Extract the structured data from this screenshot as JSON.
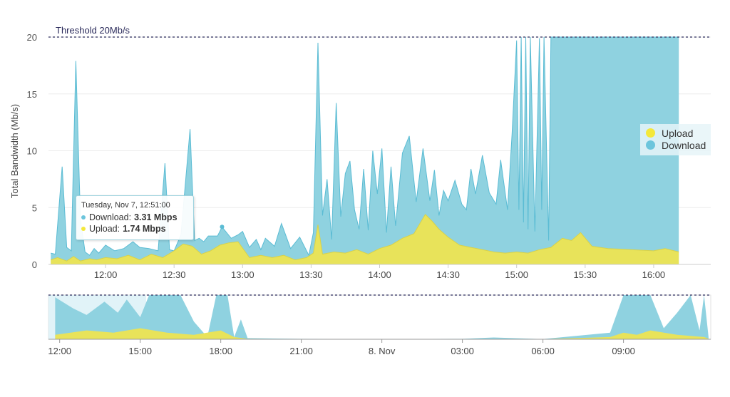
{
  "chart_data": [
    {
      "type": "area",
      "ylabel": "Total Bandwidth (Mb/s)",
      "ylim": [
        0,
        20
      ],
      "yticks": [
        "0",
        "5",
        "10",
        "15",
        "20"
      ],
      "xticks": [
        "12:00",
        "12:30",
        "13:00",
        "13:30",
        "14:00",
        "14:30",
        "15:00",
        "15:30",
        "16:00"
      ],
      "xrange_minutes": [
        695,
        985
      ],
      "threshold": {
        "label": "Threshold 20Mb/s",
        "value": 20
      },
      "legend": {
        "placement": "right",
        "entries": [
          "Upload",
          "Download"
        ]
      },
      "colors": {
        "upload": "#e8e35a",
        "download": "#8fd2e0",
        "download_stroke": "#5bbcd4",
        "threshold": "#2a2a5a"
      },
      "series": [
        {
          "name": "Download",
          "x": [
            "11:36",
            "11:38",
            "11:41",
            "11:43",
            "11:45",
            "11:47",
            "11:49",
            "11:51",
            "11:53",
            "11:55",
            "11:57",
            "12:00",
            "12:04",
            "12:08",
            "12:12",
            "12:15",
            "12:19",
            "12:23",
            "12:26",
            "12:28",
            "12:30",
            "12:33",
            "12:37",
            "12:39",
            "12:41",
            "12:43",
            "12:45",
            "12:49",
            "12:51",
            "12:55",
            "12:58",
            "13:00",
            "13:03",
            "13:06",
            "13:08",
            "13:10",
            "13:14",
            "13:17",
            "13:21",
            "13:25",
            "13:29",
            "13:31",
            "13:33",
            "13:35",
            "13:37",
            "13:39",
            "13:41",
            "13:43",
            "13:45",
            "13:47",
            "13:49",
            "13:51",
            "13:53",
            "13:55",
            "13:57",
            "13:59",
            "14:01",
            "14:03",
            "14:05",
            "14:07",
            "14:10",
            "14:13",
            "14:16",
            "14:19",
            "14:22",
            "14:24",
            "14:26",
            "14:28",
            "14:30",
            "14:33",
            "14:36",
            "14:38",
            "14:40",
            "14:42",
            "14:45",
            "14:48",
            "14:51",
            "14:53",
            "14:56",
            "14:58",
            "15:00",
            "15:01",
            "15:02",
            "15:03",
            "15:04",
            "15:05",
            "15:06",
            "15:08",
            "15:10",
            "15:11",
            "15:12",
            "15:14",
            "15:15",
            "15:16",
            "15:17",
            "15:30",
            "16:00",
            "16:11"
          ],
          "values": [
            1.0,
            0.9,
            8.6,
            1.5,
            1.2,
            17.9,
            4.0,
            1.1,
            0.8,
            1.4,
            1.0,
            1.7,
            1.2,
            1.4,
            2.0,
            1.5,
            1.4,
            1.2,
            8.9,
            1.3,
            1.2,
            2.6,
            11.9,
            2.1,
            2.3,
            2.0,
            2.5,
            2.5,
            3.3,
            2.3,
            2.6,
            2.9,
            1.5,
            2.2,
            1.3,
            2.3,
            1.6,
            3.6,
            1.4,
            2.4,
            0.8,
            2.8,
            19.5,
            4.3,
            7.5,
            2.2,
            14.2,
            4.2,
            8.0,
            9.1,
            4.8,
            3.1,
            8.4,
            3.0,
            10.0,
            6.2,
            10.2,
            2.8,
            8.6,
            3.4,
            9.8,
            11.3,
            5.5,
            10.2,
            5.6,
            8.3,
            4.3,
            6.5,
            5.6,
            7.4,
            5.3,
            4.8,
            8.4,
            6.2,
            9.6,
            6.3,
            5.3,
            9.2,
            4.8,
            11.5,
            19.7,
            4.8,
            20.0,
            3.7,
            20.0,
            3.1,
            20.0,
            2.9,
            19.9,
            4.8,
            20.0,
            2.1,
            20.0,
            20.0,
            20.0,
            20.0,
            20.0,
            20.0
          ]
        },
        {
          "name": "Upload",
          "x": [
            "11:36",
            "11:39",
            "11:43",
            "11:46",
            "11:49",
            "11:53",
            "11:56",
            "12:00",
            "12:05",
            "12:10",
            "12:15",
            "12:20",
            "12:25",
            "12:30",
            "12:34",
            "12:38",
            "12:42",
            "12:46",
            "12:50",
            "12:54",
            "12:58",
            "13:03",
            "13:08",
            "13:13",
            "13:18",
            "13:23",
            "13:28",
            "13:31",
            "13:33",
            "13:35",
            "13:40",
            "13:45",
            "13:50",
            "13:55",
            "14:00",
            "14:05",
            "14:10",
            "14:15",
            "14:20",
            "14:23",
            "14:26",
            "14:30",
            "14:35",
            "14:40",
            "14:45",
            "14:50",
            "14:55",
            "15:00",
            "15:05",
            "15:10",
            "15:15",
            "15:20",
            "15:24",
            "15:28",
            "15:33",
            "15:40",
            "15:50",
            "16:00",
            "16:05",
            "16:11"
          ],
          "values": [
            0.4,
            0.6,
            0.3,
            0.7,
            0.3,
            0.5,
            0.4,
            0.6,
            0.5,
            0.8,
            0.4,
            0.9,
            0.6,
            1.2,
            1.8,
            1.6,
            0.9,
            1.2,
            1.7,
            1.9,
            2.0,
            0.6,
            0.8,
            0.6,
            0.8,
            0.4,
            0.6,
            1.0,
            3.5,
            0.9,
            1.1,
            1.0,
            1.3,
            0.9,
            1.4,
            1.7,
            2.3,
            2.7,
            4.4,
            3.8,
            3.1,
            2.4,
            1.7,
            1.5,
            1.3,
            1.1,
            1.0,
            1.1,
            1.0,
            1.3,
            1.5,
            2.3,
            2.1,
            2.8,
            1.6,
            1.4,
            1.3,
            1.2,
            1.4,
            1.1
          ]
        }
      ]
    },
    {
      "type": "area",
      "xticks": [
        "12:00",
        "15:00",
        "18:00",
        "21:00",
        "8. Nov",
        "03:00",
        "06:00",
        "09:00"
      ],
      "threshold": {
        "value": 20
      },
      "series": [
        {
          "name": "Download",
          "x": [
            "11:50",
            "12:30",
            "13:00",
            "13:40",
            "14:10",
            "14:30",
            "15:00",
            "15:20",
            "16:00",
            "16:30",
            "17:00",
            "17:30",
            "17:50",
            "18:00",
            "18:15",
            "18:30",
            "18:45",
            "19:00",
            "21:00",
            "00:00",
            "03:00",
            "04:10",
            "06:00",
            "08:30",
            "09:00",
            "09:30",
            "10:00",
            "10:30",
            "11:00",
            "11:30",
            "11:50",
            "12:00",
            "12:10"
          ],
          "values": [
            19,
            14,
            11,
            17,
            12,
            18,
            10,
            20,
            20,
            20,
            8,
            1,
            20,
            20,
            20,
            1,
            9,
            0.5,
            0.2,
            0.1,
            0.2,
            0.8,
            0.1,
            3,
            20,
            20,
            20,
            5,
            12,
            20,
            4,
            20,
            1
          ]
        },
        {
          "name": "Upload",
          "x": [
            "11:50",
            "13:00",
            "14:00",
            "15:00",
            "16:00",
            "17:00",
            "18:00",
            "18:30",
            "19:00",
            "21:00",
            "06:00",
            "08:30",
            "09:00",
            "09:30",
            "10:00",
            "11:00",
            "12:00",
            "12:10"
          ],
          "values": [
            2,
            4,
            3,
            5,
            3,
            2,
            4,
            1,
            0.2,
            0.1,
            0.1,
            1,
            3,
            2,
            4,
            2,
            1,
            0.3
          ]
        }
      ]
    }
  ],
  "tooltip": {
    "title": "Tuesday, Nov 7, 12:51:00",
    "download_label": "Download:",
    "download_value": "3.31 Mbps",
    "upload_label": "Upload:",
    "upload_value": "1.74 Mbps"
  }
}
